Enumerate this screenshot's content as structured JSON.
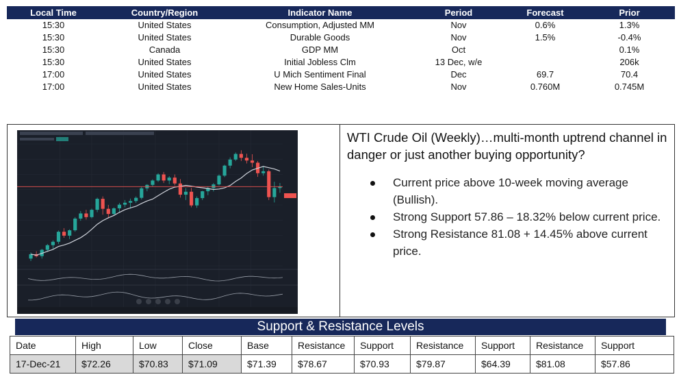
{
  "calendar": {
    "headers": [
      "Local Time",
      "Country/Region",
      "Indicator Name",
      "Period",
      "Forecast",
      "Prior"
    ],
    "rows": [
      [
        "15:30",
        "United States",
        "Consumption, Adjusted MM",
        "Nov",
        "0.6%",
        "1.3%"
      ],
      [
        "15:30",
        "United States",
        "Durable Goods",
        "Nov",
        "1.5%",
        "-0.4%"
      ],
      [
        "15:30",
        "Canada",
        "GDP MM",
        "Oct",
        "",
        "0.1%"
      ],
      [
        "15:30",
        "United States",
        "Initial Jobless Clm",
        "13 Dec, w/e",
        "",
        "206k"
      ],
      [
        "17:00",
        "United States",
        "U Mich Sentiment Final",
        "Dec",
        "69.7",
        "70.4"
      ],
      [
        "17:00",
        "United States",
        "New Home Sales-Units",
        "Nov",
        "0.760M",
        "0.745M"
      ]
    ]
  },
  "commentary": {
    "title": "WTI Crude Oil (Weekly)…multi-month uptrend channel in danger or just another buying opportunity?",
    "bullets": [
      "Current price above 10-week moving average (Bullish).",
      "Strong Support 57.86 – 18.32% below current price.",
      "Strong Resistance 81.08 + 14.45% above current price."
    ]
  },
  "chart": {
    "up_color": "#26a69a",
    "down_color": "#ef5350",
    "ma_color": "#d0d4dc",
    "price_line_color": "#ef5350",
    "candles": [
      [
        41.0,
        43.5,
        40.0,
        42.8
      ],
      [
        42.8,
        44.0,
        41.5,
        42.0
      ],
      [
        42.0,
        45.0,
        41.0,
        44.6
      ],
      [
        44.6,
        47.0,
        43.8,
        46.5
      ],
      [
        46.5,
        48.5,
        45.0,
        47.9
      ],
      [
        47.9,
        52.5,
        47.0,
        52.0
      ],
      [
        52.0,
        53.5,
        49.5,
        50.4
      ],
      [
        50.4,
        53.0,
        49.0,
        52.6
      ],
      [
        52.6,
        58.0,
        52.0,
        57.4
      ],
      [
        57.4,
        60.5,
        56.5,
        59.5
      ],
      [
        59.5,
        61.0,
        57.0,
        58.0
      ],
      [
        58.0,
        61.5,
        57.5,
        61.0
      ],
      [
        61.0,
        66.0,
        60.0,
        65.5
      ],
      [
        65.5,
        66.5,
        59.0,
        61.4
      ],
      [
        61.4,
        63.0,
        57.5,
        59.3
      ],
      [
        59.3,
        62.0,
        58.5,
        61.6
      ],
      [
        61.6,
        63.8,
        60.0,
        63.1
      ],
      [
        63.1,
        65.0,
        62.0,
        63.9
      ],
      [
        63.9,
        65.6,
        61.5,
        64.6
      ],
      [
        64.6,
        66.5,
        63.8,
        65.9
      ],
      [
        65.9,
        70.5,
        65.2,
        69.8
      ],
      [
        69.8,
        71.5,
        68.6,
        71.2
      ],
      [
        71.2,
        73.5,
        70.5,
        73.0
      ],
      [
        73.0,
        76.0,
        72.4,
        75.5
      ],
      [
        75.5,
        76.5,
        72.0,
        73.0
      ],
      [
        73.0,
        74.8,
        71.5,
        74.2
      ],
      [
        74.2,
        75.5,
        71.0,
        71.8
      ],
      [
        71.8,
        73.6,
        66.0,
        67.2
      ],
      [
        67.2,
        69.9,
        65.0,
        68.4
      ],
      [
        68.4,
        70.0,
        62.0,
        62.8
      ],
      [
        62.8,
        66.5,
        61.8,
        65.8
      ],
      [
        65.8,
        68.8,
        65.0,
        68.6
      ],
      [
        68.6,
        70.5,
        67.0,
        69.9
      ],
      [
        69.9,
        72.0,
        68.5,
        71.4
      ],
      [
        71.4,
        75.5,
        71.0,
        75.0
      ],
      [
        75.0,
        79.5,
        74.4,
        79.1
      ],
      [
        79.1,
        82.5,
        78.0,
        81.6
      ],
      [
        81.6,
        84.5,
        81.0,
        83.9
      ],
      [
        83.9,
        85.4,
        81.0,
        82.3
      ],
      [
        82.3,
        84.0,
        80.0,
        81.2
      ],
      [
        81.2,
        83.8,
        78.5,
        80.3
      ],
      [
        80.3,
        81.0,
        74.5,
        76.0
      ],
      [
        76.0,
        79.0,
        75.0,
        76.8
      ],
      [
        76.8,
        77.5,
        65.0,
        66.2
      ],
      [
        66.2,
        72.5,
        64.0,
        69.9
      ],
      [
        69.9,
        72.0,
        68.0,
        70.5
      ]
    ]
  },
  "sr": {
    "title": "Support & Resistance Levels",
    "headers": [
      "Date",
      "High",
      "Low",
      "Close",
      "Base",
      "Resistance",
      "Support",
      "Resistance",
      "Support",
      "Resistance",
      "Support"
    ],
    "values": [
      "17-Dec-21",
      "$72.26",
      "$70.83",
      "$71.09",
      "$71.39",
      "$78.67",
      "$70.93",
      "$79.87",
      "$64.39",
      "$81.08",
      "$57.86"
    ]
  }
}
